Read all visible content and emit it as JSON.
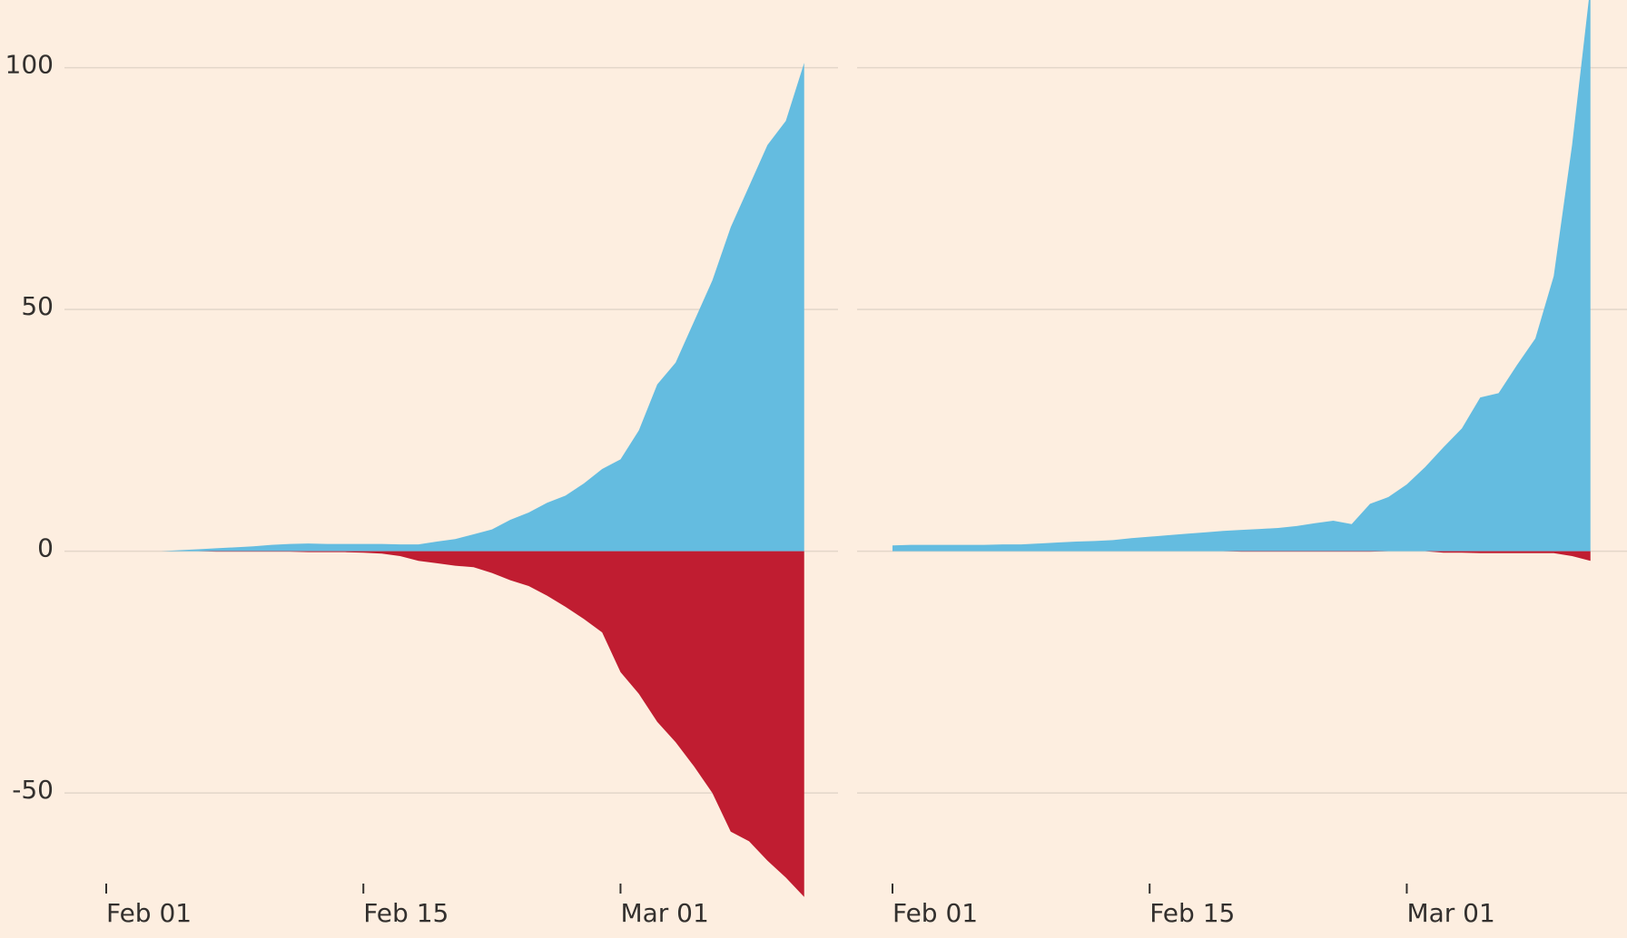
{
  "chart_data": [
    {
      "type": "area",
      "x": [
        "Feb 01",
        "Feb 02",
        "Feb 03",
        "Feb 04",
        "Feb 05",
        "Feb 06",
        "Feb 07",
        "Feb 08",
        "Feb 09",
        "Feb 10",
        "Feb 11",
        "Feb 12",
        "Feb 13",
        "Feb 14",
        "Feb 15",
        "Feb 16",
        "Feb 17",
        "Feb 18",
        "Feb 19",
        "Feb 20",
        "Feb 21",
        "Feb 22",
        "Feb 23",
        "Feb 24",
        "Feb 25",
        "Feb 26",
        "Feb 27",
        "Feb 28",
        "Mar 01",
        "Mar 02",
        "Mar 03",
        "Mar 04",
        "Mar 05",
        "Mar 06",
        "Mar 07",
        "Mar 08",
        "Mar 09",
        "Mar 10",
        "Mar 11"
      ],
      "xticks": [
        "Feb 01",
        "Feb 15",
        "Mar 01"
      ],
      "series": [
        {
          "color": "#64bce0",
          "values": [
            0,
            0,
            0,
            0,
            0.2,
            0.4,
            0.6,
            0.8,
            1,
            1.3,
            1.5,
            1.6,
            1.5,
            1.5,
            1.5,
            1.5,
            1.4,
            1.4,
            2,
            2.5,
            3.5,
            4.5,
            6.5,
            8,
            10,
            11.5,
            14,
            17,
            19,
            25,
            34.5,
            39,
            47.5,
            56,
            67,
            75.5,
            84,
            89,
            101
          ]
        },
        {
          "color": "#c01d31",
          "values": [
            0,
            0,
            0,
            0,
            0,
            0,
            -0.1,
            -0.1,
            -0.1,
            -0.1,
            -0.1,
            -0.2,
            -0.2,
            -0.2,
            -0.3,
            -0.5,
            -1,
            -2,
            -2.5,
            -3,
            -3.3,
            -4.5,
            -6,
            -7.2,
            -9.2,
            -11.5,
            -14,
            -16.8,
            -25,
            -29.5,
            -35.3,
            -39.5,
            -44.5,
            -50,
            -58,
            -60,
            -64,
            -67.5,
            -71.5
          ]
        }
      ],
      "ylim": [
        -80,
        114
      ],
      "yticks": [
        -50,
        0,
        50,
        100
      ],
      "grid": true
    },
    {
      "type": "area",
      "x": [
        "Feb 01",
        "Feb 02",
        "Feb 03",
        "Feb 04",
        "Feb 05",
        "Feb 06",
        "Feb 07",
        "Feb 08",
        "Feb 09",
        "Feb 10",
        "Feb 11",
        "Feb 12",
        "Feb 13",
        "Feb 14",
        "Feb 15",
        "Feb 16",
        "Feb 17",
        "Feb 18",
        "Feb 19",
        "Feb 20",
        "Feb 21",
        "Feb 22",
        "Feb 23",
        "Feb 24",
        "Feb 25",
        "Feb 26",
        "Feb 27",
        "Feb 28",
        "Mar 01",
        "Mar 02",
        "Mar 03",
        "Mar 04",
        "Mar 05",
        "Mar 06",
        "Mar 07",
        "Mar 08",
        "Mar 09",
        "Mar 10",
        "Mar 11"
      ],
      "xticks": [
        "Feb 01",
        "Feb 15",
        "Mar 01"
      ],
      "series": [
        {
          "color": "#64bce0",
          "values": [
            1.2,
            1.3,
            1.3,
            1.3,
            1.3,
            1.3,
            1.4,
            1.4,
            1.6,
            1.8,
            2,
            2.1,
            2.3,
            2.7,
            3,
            3.3,
            3.6,
            3.9,
            4.2,
            4.4,
            4.6,
            4.8,
            5.2,
            5.8,
            6.3,
            5.6,
            9.8,
            11.2,
            13.8,
            17.4,
            21.5,
            25.4,
            31.8,
            32.7,
            38.5,
            44,
            56.9,
            84,
            117
          ]
        },
        {
          "color": "#c01d31",
          "values": [
            0,
            0,
            0,
            0,
            0,
            0,
            0,
            0,
            0,
            0,
            0,
            0,
            0,
            0,
            0,
            0,
            0,
            0,
            0,
            -0.1,
            -0.1,
            -0.1,
            -0.1,
            -0.1,
            -0.1,
            -0.1,
            -0.1,
            0,
            0,
            0,
            -0.3,
            -0.3,
            -0.4,
            -0.4,
            -0.4,
            -0.4,
            -0.4,
            -1,
            -2
          ]
        }
      ],
      "ylim": [
        -80,
        114
      ],
      "yticks": [
        -50,
        0,
        50,
        100
      ],
      "grid": true
    }
  ]
}
